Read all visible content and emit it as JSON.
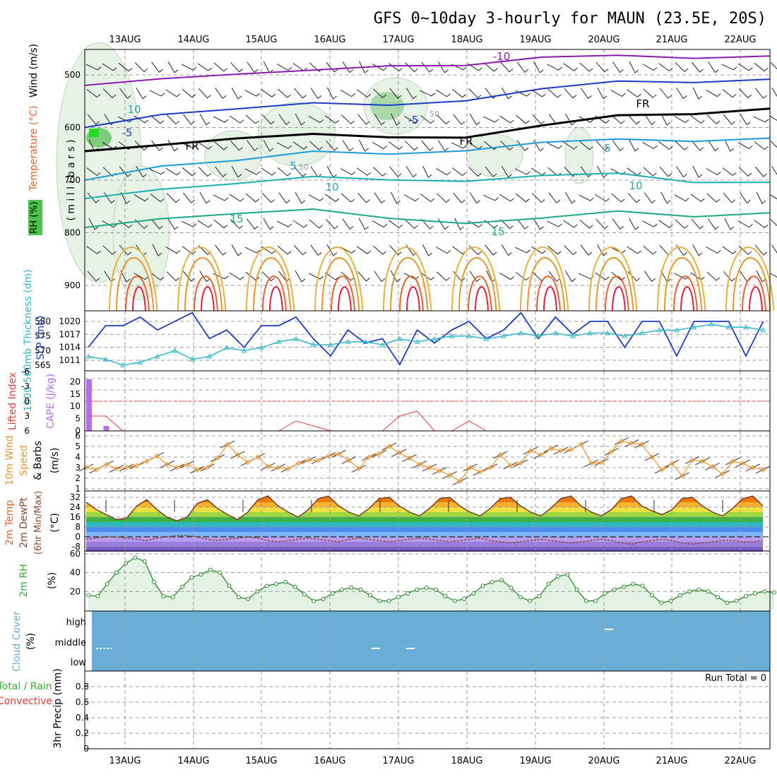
{
  "title": "GFS 0~10day 3-hourly for MAUN (23.5E, 20S)",
  "dates": [
    "13AUG",
    "14AUG",
    "15AUG",
    "16AUG",
    "17AUG",
    "18AUG",
    "19AUG",
    "20AUG",
    "21AUG",
    "22AUG"
  ],
  "run_total_label": "Run Total = 0",
  "colors": {
    "rh": "#4cc44c",
    "temperature": "#e8622a",
    "temp_neg": "#7a2ab8",
    "wind": "#000000",
    "thickness": "#2fb8c8",
    "slp": "#1c3cc8",
    "lifted": "#e83c3c",
    "cape": "#b86cf0",
    "wind10": "#e8962a",
    "dewpt": "#8a4a30",
    "rh2m": "#3caa3c",
    "cloud": "#6aaed6",
    "conv": "#e83c3c"
  },
  "panels": {
    "upper": {
      "ylabel_parts": [
        {
          "text": "RH (%)",
          "color": "#000000"
        },
        {
          "text": "Temperature (°C)",
          "color": "#e8622a"
        },
        {
          "text": "Wind (m/s)",
          "color": "#000000"
        }
      ],
      "ylabel_units": "( m i l l i b a r s )",
      "contour_labels": [
        "-10",
        "-5",
        "-5",
        "FR",
        "FR",
        "FR",
        "5",
        "5",
        "10",
        "10",
        "15",
        "15",
        "10",
        "50",
        "50"
      ]
    },
    "slp": {
      "ylabel_left": "1000-500mb Thickness (dm)",
      "ylabel_right": "SLP (mb)"
    },
    "cape": {
      "ylabel_left": "Lifted Index",
      "ylabel_right": "CAPE (J/kg)"
    },
    "wind10": {
      "ylabel_a": "10m Wind",
      "ylabel_b": "Speed",
      "ylabel_c": "& Barbs",
      "ylabel_units": "(m/s)"
    },
    "temp2m": {
      "ylabel_a": "2m Temp",
      "ylabel_b": "2m DewPt",
      "ylabel_c": "(6hr Min/Max)",
      "ylabel_units": "(°C)"
    },
    "rh2m": {
      "ylabel": "2m RH",
      "ylabel_units": "(%)"
    },
    "cloud": {
      "ylabel": "Cloud Cover",
      "ylabel_units": "(%)",
      "levels": [
        "high",
        "middle",
        "low"
      ]
    },
    "precip": {
      "ylabel_a": "Total / Rain",
      "ylabel_b": "Convective",
      "ylabel_units": "3hr Precip (mm)"
    }
  },
  "chart_data": [
    {
      "type": "line",
      "name": "upper-air cross-section",
      "ylabel": "millibars",
      "y_ticks": [
        500,
        600,
        700,
        800,
        900
      ],
      "ylim": [
        450,
        950
      ],
      "x": [
        "13AUG",
        "14AUG",
        "15AUG",
        "16AUG",
        "17AUG",
        "18AUG",
        "19AUG",
        "20AUG",
        "21AUG",
        "22AUG"
      ],
      "series": [
        {
          "name": "-10",
          "values": [
            520,
            502,
            500,
            496,
            480,
            478,
            470,
            466,
            464,
            462
          ]
        },
        {
          "name": "-5",
          "values": [
            600,
            570,
            566,
            558,
            555,
            545,
            530,
            515,
            510,
            506
          ]
        },
        {
          "name": "FR",
          "values": [
            645,
            628,
            622,
            617,
            616,
            615,
            600,
            580,
            570,
            562
          ]
        },
        {
          "name": "5",
          "values": [
            700,
            668,
            664,
            650,
            648,
            640,
            632,
            625,
            622,
            618
          ]
        },
        {
          "name": "10",
          "values": [
            735,
            712,
            708,
            698,
            697,
            698,
            695,
            690,
            700,
            702
          ]
        },
        {
          "name": "15",
          "values": [
            790,
            768,
            765,
            760,
            770,
            778,
            776,
            762,
            765,
            760
          ]
        }
      ]
    },
    {
      "type": "line",
      "name": "slp-thickness",
      "x_start": "12AUG 12Z",
      "x_step_hours": 6,
      "slp_ticks": [
        1011,
        1014,
        1017,
        1020
      ],
      "thickness_ticks": [
        565,
        570,
        575,
        580
      ],
      "series": [
        {
          "name": "SLP (mb)",
          "values": [
            1014,
            1019,
            1019,
            1021,
            1018,
            1020,
            1022,
            1016,
            1018,
            1014,
            1019,
            1019,
            1021,
            1016,
            1012,
            1018,
            1015,
            1016,
            1010,
            1018,
            1015,
            1018,
            1020,
            1016,
            1018,
            1022,
            1016,
            1021,
            1017,
            1020,
            1020,
            1014,
            1020,
            1020,
            1012,
            1020,
            1020,
            1020,
            1012,
            1020
          ]
        },
        {
          "name": "1000-500mb Thickness (dm)",
          "values": [
            568,
            567,
            565,
            566,
            568,
            570,
            567,
            568,
            571,
            570,
            571,
            573,
            574,
            572,
            572,
            573,
            573,
            572,
            574,
            573,
            574,
            575,
            575,
            574,
            575,
            576,
            575,
            576,
            575,
            576,
            576,
            575,
            576,
            577,
            577,
            578,
            579,
            578,
            578,
            577
          ]
        }
      ]
    },
    {
      "type": "bar",
      "name": "cape-lifted",
      "x_start": "12AUG 12Z",
      "x_step_hours": 6,
      "cape_ticks": [
        0,
        5,
        10,
        15,
        20
      ],
      "lifted_ticks": [
        6,
        3,
        0,
        -3,
        -6
      ],
      "cape_values": [
        21,
        2,
        0,
        0,
        0,
        0,
        0,
        0,
        0,
        0,
        0,
        0,
        0,
        0,
        0,
        0,
        0,
        0,
        0,
        0,
        0,
        0,
        0,
        0,
        0,
        0,
        0,
        0,
        0,
        0,
        0,
        0,
        0,
        0,
        0,
        0,
        0,
        0,
        0,
        0
      ],
      "lifted_values": [
        3,
        3,
        6,
        6,
        6,
        6,
        6,
        6,
        6,
        6,
        6,
        6,
        4,
        5,
        6,
        6,
        6,
        6,
        3,
        2,
        6,
        6,
        4,
        6,
        6,
        6,
        6,
        6,
        6,
        6,
        6,
        6,
        6,
        6,
        6,
        6,
        6,
        6,
        6,
        6
      ]
    },
    {
      "type": "line",
      "name": "10m-wind-speed",
      "ylim": [
        1,
        6
      ],
      "y_ticks": [
        1,
        2,
        3,
        4,
        5,
        6
      ],
      "values": [
        3.0,
        2.8,
        3.3,
        2.9,
        3.0,
        3.2,
        3.6,
        4.1,
        3.3,
        3.0,
        3.3,
        2.8,
        3.0,
        3.9,
        5.2,
        4.2,
        3.5,
        4.0,
        3.1,
        3.0,
        2.9,
        3.4,
        3.7,
        3.7,
        4.1,
        4.3,
        3.7,
        2.9,
        4.0,
        4.3,
        5.0,
        4.4,
        3.9,
        3.3,
        3.0,
        2.7,
        2.3,
        1.7,
        3.0,
        2.6,
        3.0,
        4.2,
        3.2,
        3.4,
        4.6,
        4.2,
        4.8,
        4.6,
        4.7,
        5.2,
        3.4,
        3.5,
        4.5,
        5.5,
        5.3,
        5.2,
        4.0,
        2.8,
        3.4,
        2.2,
        3.7,
        3.6,
        3.1,
        2.4,
        3.6,
        3.4,
        3.0,
        2.8
      ]
    },
    {
      "type": "line",
      "name": "2m-temperature",
      "y_ticks": [
        -8,
        0,
        8,
        16,
        24,
        32
      ],
      "ylim": [
        -12,
        36
      ],
      "temp_values": [
        28,
        22,
        18,
        14,
        15,
        25,
        30,
        22,
        16,
        13,
        16,
        27,
        30,
        23,
        18,
        14,
        20,
        30,
        33,
        25,
        20,
        16,
        22,
        31,
        33,
        25,
        20,
        17,
        23,
        31,
        32,
        25,
        20,
        17,
        23,
        31,
        32,
        25,
        20,
        17,
        23,
        31,
        32,
        25,
        20,
        17,
        23,
        31,
        33,
        25,
        20,
        17,
        22,
        31,
        33,
        25,
        21,
        18,
        22,
        31,
        32,
        25,
        20,
        17,
        23,
        31,
        33,
        25
      ],
      "dewpt_values": [
        -2,
        -1,
        0,
        0,
        -1,
        -2,
        -3,
        -1,
        0,
        1,
        1,
        0,
        -2,
        -3,
        -2,
        -1,
        0,
        -1,
        -3,
        -4,
        -3,
        -2,
        -1,
        -2,
        -3,
        -4,
        -2,
        -1,
        -2,
        -3,
        -4,
        -3,
        -2,
        -1,
        -2,
        -3,
        -4,
        -3,
        -2,
        -1,
        -3,
        -4,
        -5,
        -4,
        -3,
        -2,
        -3,
        -4,
        -5,
        -4,
        -3,
        -2,
        -3,
        -5,
        -6,
        -4,
        -3,
        -2,
        -3,
        -5,
        -6,
        -5,
        -4,
        -3,
        -3,
        -4,
        -4,
        -3
      ]
    },
    {
      "type": "area",
      "name": "2m-rh",
      "y_ticks": [
        20,
        40,
        60
      ],
      "ylim": [
        0,
        60
      ],
      "values": [
        16,
        15,
        28,
        40,
        50,
        56,
        52,
        30,
        15,
        14,
        25,
        35,
        38,
        43,
        40,
        26,
        14,
        12,
        20,
        26,
        28,
        30,
        25,
        17,
        10,
        12,
        18,
        22,
        24,
        22,
        16,
        10,
        10,
        14,
        18,
        22,
        24,
        22,
        15,
        10,
        12,
        18,
        26,
        30,
        32,
        24,
        14,
        10,
        15,
        28,
        36,
        38,
        22,
        10,
        10,
        18,
        22,
        25,
        28,
        26,
        16,
        8,
        10,
        16,
        20,
        22,
        20,
        14,
        8,
        10,
        15,
        18,
        20,
        19
      ]
    },
    {
      "type": "table",
      "name": "cloud-cover",
      "levels": [
        "high",
        "middle",
        "low"
      ],
      "fill_color": "#6aaed6",
      "value_all_levels_percent": 100
    },
    {
      "type": "bar",
      "name": "3hr-precip",
      "y_ticks": [
        0,
        0.2,
        0.4,
        0.6,
        0.8
      ],
      "ylim": [
        0,
        1
      ],
      "values": [
        0,
        0,
        0,
        0,
        0,
        0,
        0,
        0,
        0,
        0
      ]
    }
  ]
}
